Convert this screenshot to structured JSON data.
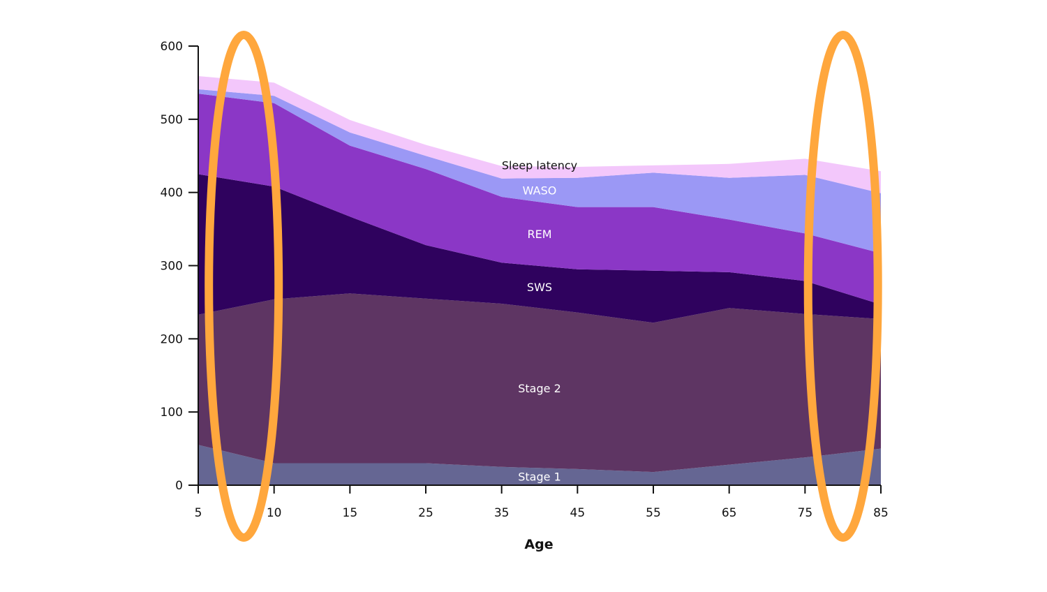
{
  "chart_data": {
    "type": "area",
    "stacked": true,
    "xlabel": "Age",
    "ylabel": "",
    "x_ticks": [
      5,
      10,
      15,
      25,
      35,
      45,
      55,
      65,
      75,
      85
    ],
    "y_ticks": [
      0,
      100,
      200,
      300,
      400,
      500,
      600
    ],
    "ylim": [
      0,
      600
    ],
    "grid": false,
    "legend": "inline labels",
    "series": [
      {
        "name": "Stage 1",
        "color": "#656693",
        "label_color": "#ffffff",
        "values": [
          55,
          30,
          30,
          30,
          25,
          22,
          18,
          28,
          38,
          50
        ]
      },
      {
        "name": "Stage 2",
        "color": "#5e3563",
        "label_color": "#ffffff",
        "values": [
          178,
          224,
          232,
          225,
          223,
          214,
          204,
          214,
          196,
          177
        ]
      },
      {
        "name": "SWS",
        "color": "#2f025e",
        "label_color": "#ffffff",
        "values": [
          192,
          154,
          105,
          73,
          56,
          59,
          71,
          49,
          45,
          20
        ]
      },
      {
        "name": "REM",
        "color": "#8b37c6",
        "label_color": "#ffffff",
        "values": [
          110,
          114,
          97,
          104,
          90,
          85,
          87,
          72,
          65,
          70
        ]
      },
      {
        "name": "WASO",
        "color": "#9b98f5",
        "label_color": "#ffffff",
        "values": [
          6,
          10,
          18,
          18,
          25,
          40,
          47,
          57,
          80,
          82
        ]
      },
      {
        "name": "Sleep latency",
        "color": "#f3c7fb",
        "label_color": "#111111",
        "values": [
          18,
          18,
          17,
          15,
          17,
          15,
          10,
          19,
          22,
          30
        ]
      }
    ]
  },
  "annotations": [
    {
      "type": "highlight-ellipse",
      "color": "#ffa73d",
      "around_x": 8
    },
    {
      "type": "highlight-ellipse",
      "color": "#ffa73d",
      "around_x": 80
    }
  ]
}
